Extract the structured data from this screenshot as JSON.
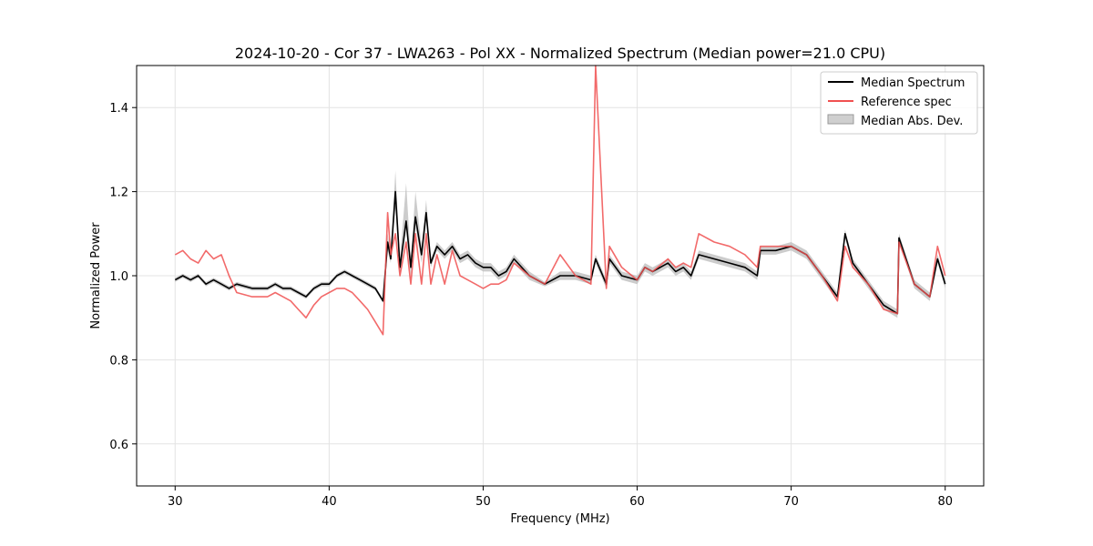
{
  "chart_data": {
    "type": "line",
    "title": "2024-10-20 - Cor 37 - LWA263 - Pol XX - Normalized Spectrum (Median power=21.0 CPU)",
    "xlabel": "Frequency (MHz)",
    "ylabel": "Normalized Power",
    "xlim": [
      27.5,
      82.5
    ],
    "ylim": [
      0.5,
      1.5
    ],
    "xticks": [
      30,
      40,
      50,
      60,
      70,
      80
    ],
    "yticks": [
      0.6,
      0.8,
      1.0,
      1.2,
      1.4
    ],
    "grid": true,
    "legend_position": "top-right",
    "series": [
      {
        "name": "Median Spectrum",
        "color": "#000000",
        "x": [
          30.0,
          30.5,
          31.0,
          31.5,
          32.0,
          32.5,
          33.0,
          33.5,
          34.0,
          35.0,
          36.0,
          36.5,
          37.0,
          37.5,
          38.0,
          38.5,
          39.0,
          39.5,
          40.0,
          40.5,
          41.0,
          41.5,
          42.0,
          42.5,
          43.0,
          43.5,
          43.8,
          44.0,
          44.3,
          44.6,
          45.0,
          45.3,
          45.6,
          46.0,
          46.3,
          46.6,
          47.0,
          47.5,
          48.0,
          48.5,
          49.0,
          49.5,
          50.0,
          50.5,
          51.0,
          51.5,
          52.0,
          53.0,
          54.0,
          55.0,
          56.0,
          57.0,
          57.3,
          58.0,
          58.2,
          59.0,
          60.0,
          60.5,
          61.0,
          62.0,
          62.5,
          63.0,
          63.5,
          64.0,
          65.0,
          66.0,
          67.0,
          67.8,
          68.0,
          69.0,
          70.0,
          71.0,
          72.0,
          73.0,
          73.5,
          74.0,
          75.0,
          76.0,
          76.9,
          77.0,
          78.0,
          79.0,
          79.5,
          80.0
        ],
        "values": [
          0.99,
          1.0,
          0.99,
          1.0,
          0.98,
          0.99,
          0.98,
          0.97,
          0.98,
          0.97,
          0.97,
          0.98,
          0.97,
          0.97,
          0.96,
          0.95,
          0.97,
          0.98,
          0.98,
          1.0,
          1.01,
          1.0,
          0.99,
          0.98,
          0.97,
          0.94,
          1.08,
          1.04,
          1.2,
          1.02,
          1.13,
          1.02,
          1.14,
          1.05,
          1.15,
          1.03,
          1.07,
          1.05,
          1.07,
          1.04,
          1.05,
          1.03,
          1.02,
          1.02,
          1.0,
          1.01,
          1.04,
          1.0,
          0.98,
          1.0,
          1.0,
          0.99,
          1.04,
          0.98,
          1.04,
          1.0,
          0.99,
          1.02,
          1.01,
          1.03,
          1.01,
          1.02,
          1.0,
          1.05,
          1.04,
          1.03,
          1.02,
          1.0,
          1.06,
          1.06,
          1.07,
          1.05,
          1.0,
          0.95,
          1.1,
          1.03,
          0.98,
          0.93,
          0.91,
          1.09,
          0.98,
          0.95,
          1.04,
          0.98
        ]
      },
      {
        "name": "Reference spec",
        "color": "#f05050",
        "x": [
          30.0,
          30.5,
          31.0,
          31.5,
          32.0,
          32.5,
          33.0,
          33.5,
          34.0,
          35.0,
          36.0,
          36.5,
          37.0,
          37.5,
          38.0,
          38.5,
          39.0,
          39.5,
          40.0,
          40.5,
          41.0,
          41.5,
          42.0,
          42.5,
          43.0,
          43.5,
          43.8,
          44.0,
          44.3,
          44.6,
          45.0,
          45.3,
          45.6,
          46.0,
          46.3,
          46.6,
          47.0,
          47.5,
          48.0,
          48.5,
          49.0,
          49.5,
          50.0,
          50.5,
          51.0,
          51.5,
          52.0,
          53.0,
          54.0,
          55.0,
          56.0,
          57.0,
          57.3,
          58.0,
          58.2,
          59.0,
          60.0,
          60.5,
          61.0,
          62.0,
          62.5,
          63.0,
          63.5,
          64.0,
          65.0,
          66.0,
          67.0,
          67.8,
          68.0,
          69.0,
          70.0,
          71.0,
          72.0,
          73.0,
          73.5,
          74.0,
          75.0,
          76.0,
          76.9,
          77.0,
          78.0,
          79.0,
          79.5,
          80.0
        ],
        "values": [
          1.05,
          1.06,
          1.04,
          1.03,
          1.06,
          1.04,
          1.05,
          1.0,
          0.96,
          0.95,
          0.95,
          0.96,
          0.95,
          0.94,
          0.92,
          0.9,
          0.93,
          0.95,
          0.96,
          0.97,
          0.97,
          0.96,
          0.94,
          0.92,
          0.89,
          0.86,
          1.15,
          1.05,
          1.1,
          1.0,
          1.08,
          0.98,
          1.1,
          0.98,
          1.1,
          0.98,
          1.05,
          0.98,
          1.06,
          1.0,
          0.99,
          0.98,
          0.97,
          0.98,
          0.98,
          0.99,
          1.03,
          1.0,
          0.98,
          1.05,
          1.0,
          0.98,
          1.5,
          0.97,
          1.07,
          1.02,
          0.99,
          1.02,
          1.01,
          1.04,
          1.02,
          1.03,
          1.02,
          1.1,
          1.08,
          1.07,
          1.05,
          1.02,
          1.07,
          1.07,
          1.07,
          1.05,
          1.0,
          0.94,
          1.07,
          1.02,
          0.98,
          0.92,
          0.91,
          1.08,
          0.98,
          0.95,
          1.07,
          1.0
        ]
      }
    ],
    "band": {
      "name": "Median Abs. Dev.",
      "color": "#bbbbbb",
      "lower": [
        0.985,
        0.995,
        0.985,
        0.995,
        0.975,
        0.985,
        0.975,
        0.965,
        0.975,
        0.965,
        0.965,
        0.975,
        0.965,
        0.965,
        0.955,
        0.945,
        0.965,
        0.975,
        0.975,
        0.995,
        1.005,
        0.995,
        0.985,
        0.975,
        0.965,
        0.935,
        1.06,
        1.03,
        1.16,
        1.0,
        1.11,
        1.0,
        1.12,
        1.03,
        1.13,
        1.02,
        1.06,
        1.04,
        1.06,
        1.03,
        1.04,
        1.02,
        1.01,
        1.01,
        0.99,
        1.0,
        1.03,
        0.99,
        0.975,
        0.99,
        0.99,
        0.98,
        1.03,
        0.97,
        1.03,
        0.99,
        0.98,
        1.01,
        1.0,
        1.02,
        1.0,
        1.01,
        0.99,
        1.04,
        1.03,
        1.02,
        1.01,
        0.99,
        1.05,
        1.05,
        1.06,
        1.04,
        0.99,
        0.94,
        1.09,
        1.02,
        0.97,
        0.92,
        0.9,
        1.08,
        0.97,
        0.94,
        1.03,
        0.97
      ],
      "upper": [
        0.995,
        1.005,
        0.995,
        1.005,
        0.985,
        0.995,
        0.985,
        0.975,
        0.985,
        0.975,
        0.975,
        0.985,
        0.975,
        0.975,
        0.965,
        0.955,
        0.975,
        0.985,
        0.985,
        1.005,
        1.015,
        1.005,
        0.995,
        0.985,
        0.975,
        0.945,
        1.1,
        1.05,
        1.25,
        1.04,
        1.22,
        1.04,
        1.2,
        1.07,
        1.18,
        1.04,
        1.08,
        1.06,
        1.08,
        1.05,
        1.06,
        1.04,
        1.03,
        1.03,
        1.01,
        1.02,
        1.05,
        1.01,
        0.985,
        1.01,
        1.01,
        1.0,
        1.05,
        0.99,
        1.05,
        1.01,
        1.0,
        1.03,
        1.02,
        1.04,
        1.02,
        1.03,
        1.01,
        1.06,
        1.05,
        1.04,
        1.03,
        1.01,
        1.07,
        1.07,
        1.08,
        1.06,
        1.01,
        0.96,
        1.11,
        1.04,
        0.99,
        0.94,
        0.92,
        1.1,
        0.99,
        0.96,
        1.05,
        0.99
      ]
    }
  }
}
